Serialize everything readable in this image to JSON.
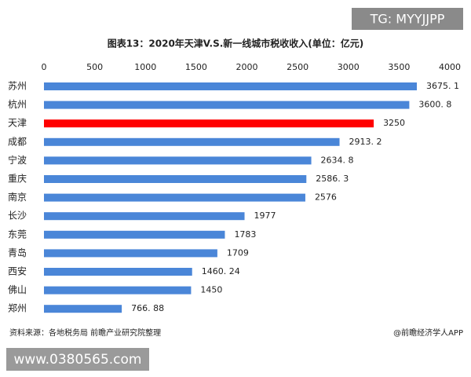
{
  "chart_data": {
    "type": "bar",
    "orientation": "horizontal",
    "title": "图表13：2020年天津V.S.新一线城市税收收入(单位：亿元)",
    "categories": [
      "苏州",
      "杭州",
      "天津",
      "成都",
      "宁波",
      "重庆",
      "南京",
      "长沙",
      "东莞",
      "青岛",
      "西安",
      "佛山",
      "郑州"
    ],
    "values": [
      3675.1,
      3600.8,
      3250,
      2913.2,
      2634.8,
      2586.3,
      2576,
      1977,
      1783,
      1709,
      1460.24,
      1450,
      766.88
    ],
    "value_labels": [
      "3675. 1",
      "3600. 8",
      "3250",
      "2913. 2",
      "2634. 8",
      "2586. 3",
      "2576",
      "1977",
      "1783",
      "1709",
      "1460. 24",
      "1450",
      "766. 88"
    ],
    "colors": [
      "#4a86d8",
      "#4a86d8",
      "#ff0000",
      "#4a86d8",
      "#4a86d8",
      "#4a86d8",
      "#4a86d8",
      "#4a86d8",
      "#4a86d8",
      "#4a86d8",
      "#4a86d8",
      "#4a86d8",
      "#4a86d8"
    ],
    "xlim": [
      0,
      4000
    ],
    "xticks": [
      0,
      500,
      1000,
      1500,
      2000,
      2500,
      3000,
      3500,
      4000
    ],
    "source": "资料来源：各地税务局 前瞻产业研究院整理",
    "credit": "@前瞻经济学人APP"
  },
  "overlays": {
    "tag": "TG: MYYJJPP",
    "url": "www.0380565.com"
  }
}
